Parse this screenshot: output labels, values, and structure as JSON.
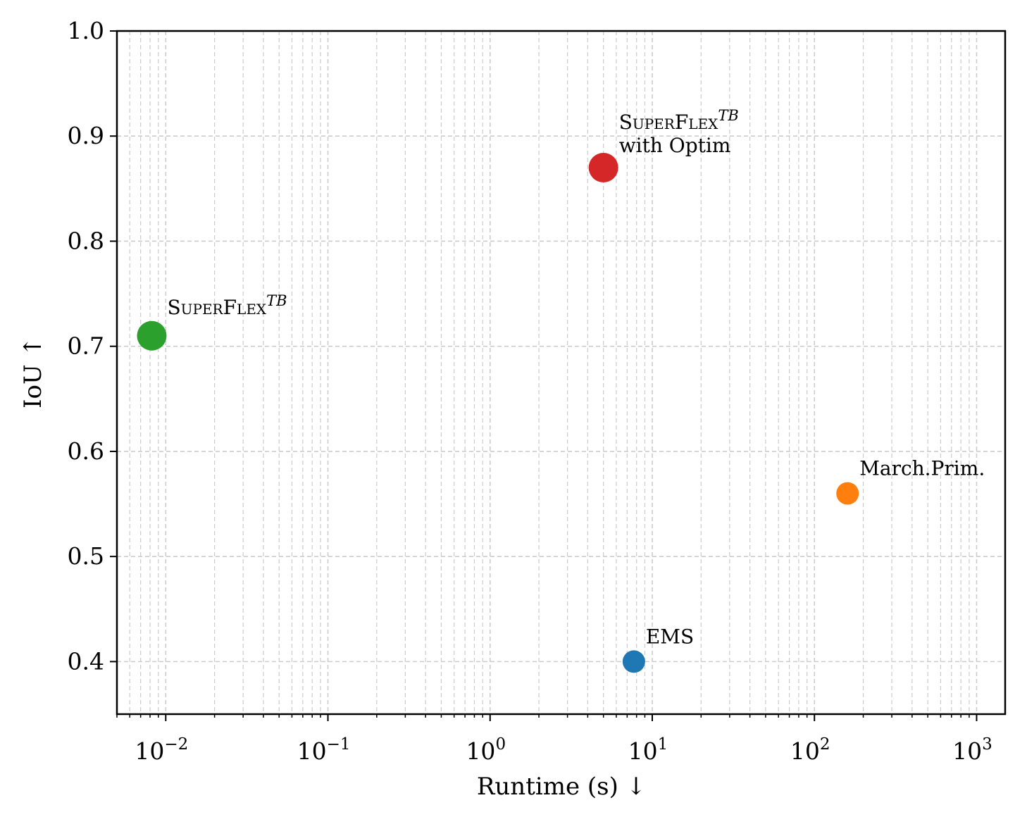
{
  "chart_data": {
    "type": "scatter",
    "title": "",
    "xlabel": "Runtime (s) ↓",
    "ylabel": "IoU ↑",
    "xscale": "log",
    "xlim": [
      0.005,
      1500
    ],
    "ylim": [
      0.35,
      1.0
    ],
    "grid": true,
    "grid_style": "dashed, major and minor",
    "x_ticks": [
      {
        "value": 0.01,
        "base": "10",
        "exp": "−2"
      },
      {
        "value": 0.1,
        "base": "10",
        "exp": "−1"
      },
      {
        "value": 1,
        "base": "10",
        "exp": "0"
      },
      {
        "value": 10,
        "base": "10",
        "exp": "1"
      },
      {
        "value": 100,
        "base": "10",
        "exp": "2"
      },
      {
        "value": 1000,
        "base": "10",
        "exp": "3"
      }
    ],
    "y_ticks": [
      {
        "value": 0.4,
        "label": "0.4"
      },
      {
        "value": 0.5,
        "label": "0.5"
      },
      {
        "value": 0.6,
        "label": "0.6"
      },
      {
        "value": 0.7,
        "label": "0.7"
      },
      {
        "value": 0.8,
        "label": "0.8"
      },
      {
        "value": 0.9,
        "label": "0.9"
      },
      {
        "value": 1.0,
        "label": "1.0"
      }
    ],
    "points": [
      {
        "label": "EMS",
        "sup": "",
        "line2": "",
        "x": 7.7,
        "y": 0.4,
        "color": "#1f77b4",
        "size": "small"
      },
      {
        "label": "March.Prim.",
        "sup": "",
        "line2": "",
        "x": 160,
        "y": 0.56,
        "color": "#ff7f0e",
        "size": "small"
      },
      {
        "label": "SuperFlex",
        "sup": "TB",
        "line2": "",
        "x": 0.0082,
        "y": 0.71,
        "color": "#2ca02c",
        "size": "large"
      },
      {
        "label": "SuperFlex",
        "sup": "TB",
        "line2": "with Optim",
        "x": 5.0,
        "y": 0.87,
        "color": "#d62728",
        "size": "large"
      }
    ]
  }
}
